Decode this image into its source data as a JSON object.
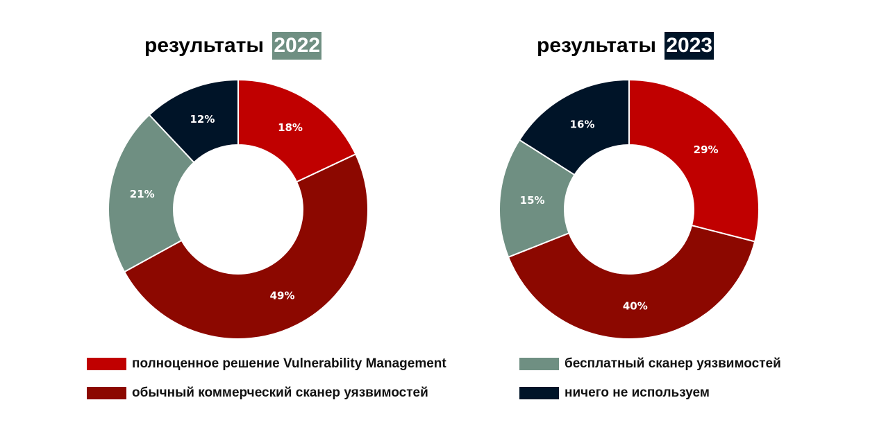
{
  "colors": {
    "full_vm": "#C00000",
    "commercial": "#8C0800",
    "free": "#6F8F82",
    "none": "#001428"
  },
  "chart_data": [
    {
      "type": "pie",
      "title_prefix": "результаты",
      "title_year": "2022",
      "year_bg": "#6F8F82",
      "categories": [
        "полноценное решение Vulnerability Management",
        "обычный коммерческий сканер уязвимостей",
        "бесплатный сканер уязвимостей",
        "ничего не используем"
      ],
      "values": [
        18,
        49,
        21,
        12
      ],
      "labels": [
        "18%",
        "49%",
        "21%",
        "12%"
      ]
    },
    {
      "type": "pie",
      "title_prefix": "результаты",
      "title_year": "2023",
      "year_bg": "#001428",
      "categories": [
        "полноценное решение Vulnerability Management",
        "обычный коммерческий сканер уязвимостей",
        "бесплатный сканер уязвимостей",
        "ничего не используем"
      ],
      "values": [
        29,
        40,
        15,
        16
      ],
      "labels": [
        "29%",
        "40%",
        "15%",
        "16%"
      ]
    }
  ],
  "legend": [
    {
      "label": "полноценное решение Vulnerability Management",
      "color": "#C00000"
    },
    {
      "label": "обычный коммерческий сканер уязвимостей",
      "color": "#8C0800"
    },
    {
      "label": "бесплатный сканер уязвимостей",
      "color": "#6F8F82"
    },
    {
      "label": "ничего не используем",
      "color": "#001428"
    }
  ]
}
